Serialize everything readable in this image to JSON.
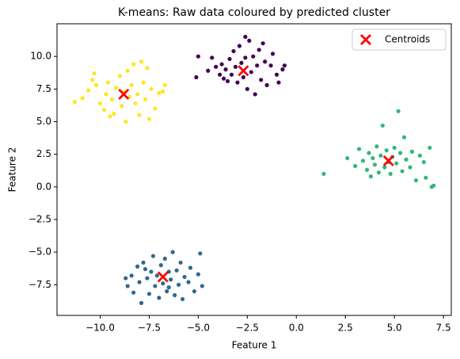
{
  "chart_data": {
    "type": "scatter",
    "title": "K-means: Raw data coloured by predicted cluster",
    "xlabel": "Feature 1",
    "ylabel": "Feature 2",
    "xlim": [
      -12.2,
      7.9
    ],
    "ylim": [
      -9.85,
      12.5
    ],
    "xticks": [
      {
        "value": -10,
        "label": "−10.0"
      },
      {
        "value": -7.5,
        "label": "−7.5"
      },
      {
        "value": -5,
        "label": "−5.0"
      },
      {
        "value": -2.5,
        "label": "−2.5"
      },
      {
        "value": 0,
        "label": "0.0"
      },
      {
        "value": 2.5,
        "label": "2.5"
      },
      {
        "value": 5,
        "label": "5.0"
      },
      {
        "value": 7.5,
        "label": "7.5"
      }
    ],
    "yticks": [
      {
        "value": -7.5,
        "label": "−7.5"
      },
      {
        "value": -5,
        "label": "−5.0"
      },
      {
        "value": -2.5,
        "label": "−2.5"
      },
      {
        "value": 0,
        "label": "0.0"
      },
      {
        "value": 2.5,
        "label": "2.5"
      },
      {
        "value": 5,
        "label": "5.0"
      },
      {
        "value": 7.5,
        "label": "7.5"
      },
      {
        "value": 10,
        "label": "10.0"
      }
    ],
    "grid": false,
    "legend": "upper right",
    "series": [
      {
        "color": "#440154",
        "x": [
          -5.1,
          -5.0,
          -4.3,
          -4.1,
          -3.9,
          -3.8,
          -3.6,
          -3.5,
          -3.4,
          -3.3,
          -3.2,
          -3.1,
          -3.0,
          -2.9,
          -2.8,
          -2.7,
          -2.6,
          -2.5,
          -2.4,
          -2.3,
          -2.2,
          -2.1,
          -2.0,
          -1.9,
          -1.8,
          -1.7,
          -1.6,
          -1.5,
          -1.3,
          -1.2,
          -1.0,
          -0.9,
          -0.7,
          -0.6,
          -2.6,
          -3.7,
          -4.5
        ],
        "y": [
          8.4,
          10.0,
          9.9,
          9.2,
          8.6,
          9.4,
          9.0,
          8.1,
          9.8,
          8.6,
          10.4,
          9.2,
          8.0,
          10.8,
          9.5,
          8.4,
          9.9,
          7.5,
          11.2,
          8.8,
          10.0,
          7.1,
          9.3,
          10.5,
          8.2,
          11.0,
          9.6,
          7.8,
          9.3,
          10.2,
          8.6,
          8.0,
          9.0,
          9.3,
          11.5,
          8.3,
          8.9
        ]
      },
      {
        "color": "#31688e",
        "x": [
          -8.7,
          -8.6,
          -8.4,
          -8.3,
          -8.1,
          -8.0,
          -7.9,
          -7.8,
          -7.6,
          -7.5,
          -7.4,
          -7.3,
          -7.2,
          -7.1,
          -7.0,
          -6.9,
          -6.8,
          -6.7,
          -6.6,
          -6.5,
          -6.4,
          -6.3,
          -6.2,
          -6.1,
          -6.0,
          -5.9,
          -5.8,
          -5.7,
          -5.5,
          -5.4,
          -5.2,
          -5.0,
          -4.9,
          -4.8,
          -7.7,
          -6.5
        ],
        "y": [
          -7.0,
          -7.6,
          -6.8,
          -8.1,
          -6.1,
          -7.3,
          -8.9,
          -5.8,
          -7.0,
          -8.2,
          -6.5,
          -5.3,
          -7.6,
          -6.8,
          -8.5,
          -6.0,
          -7.4,
          -5.5,
          -8.0,
          -6.5,
          -7.1,
          -5.0,
          -8.3,
          -6.4,
          -7.5,
          -5.8,
          -8.6,
          -6.9,
          -7.3,
          -6.2,
          -8.0,
          -6.7,
          -5.1,
          -7.6,
          -6.3,
          -7.7
        ]
      },
      {
        "color": "#35b779",
        "x": [
          1.4,
          2.6,
          3.0,
          3.2,
          3.4,
          3.6,
          3.7,
          3.8,
          3.9,
          4.0,
          4.1,
          4.2,
          4.3,
          4.4,
          4.5,
          4.6,
          4.8,
          4.9,
          5.0,
          5.1,
          5.2,
          5.3,
          5.4,
          5.5,
          5.6,
          5.8,
          5.9,
          6.1,
          6.3,
          6.5,
          6.6,
          6.8,
          6.9,
          7.0,
          4.7
        ],
        "y": [
          1.0,
          2.2,
          1.6,
          2.9,
          2.0,
          1.3,
          2.6,
          0.8,
          2.2,
          1.7,
          3.1,
          1.1,
          2.4,
          4.7,
          1.5,
          2.8,
          1.0,
          2.3,
          3.0,
          1.8,
          5.8,
          2.6,
          1.2,
          3.8,
          2.1,
          1.5,
          2.7,
          0.5,
          2.4,
          1.9,
          0.7,
          3.0,
          0.0,
          0.1,
          1.9
        ]
      },
      {
        "color": "#fde725",
        "x": [
          -11.3,
          -10.9,
          -10.6,
          -10.4,
          -10.3,
          -10.2,
          -10.0,
          -9.8,
          -9.7,
          -9.6,
          -9.4,
          -9.3,
          -9.2,
          -9.0,
          -8.9,
          -8.8,
          -8.7,
          -8.6,
          -8.5,
          -8.4,
          -8.3,
          -8.2,
          -8.1,
          -8.0,
          -7.9,
          -7.8,
          -7.7,
          -7.6,
          -7.5,
          -7.4,
          -7.2,
          -7.0,
          -6.8,
          -6.7,
          -9.5
        ],
        "y": [
          6.5,
          6.8,
          7.4,
          8.2,
          8.7,
          7.8,
          6.4,
          5.9,
          7.1,
          8.0,
          6.7,
          5.6,
          7.6,
          8.5,
          6.2,
          7.3,
          5.0,
          8.9,
          6.9,
          7.8,
          9.4,
          6.4,
          7.1,
          5.5,
          9.6,
          8.0,
          6.7,
          9.1,
          5.2,
          7.5,
          6.0,
          7.2,
          7.3,
          7.8,
          5.4
        ]
      }
    ],
    "centroids": {
      "name": "Centroids",
      "color": "#ff0000",
      "x": [
        -2.7,
        -6.8,
        4.7,
        -8.8
      ],
      "y": [
        8.9,
        -6.9,
        2.0,
        7.1
      ]
    }
  }
}
